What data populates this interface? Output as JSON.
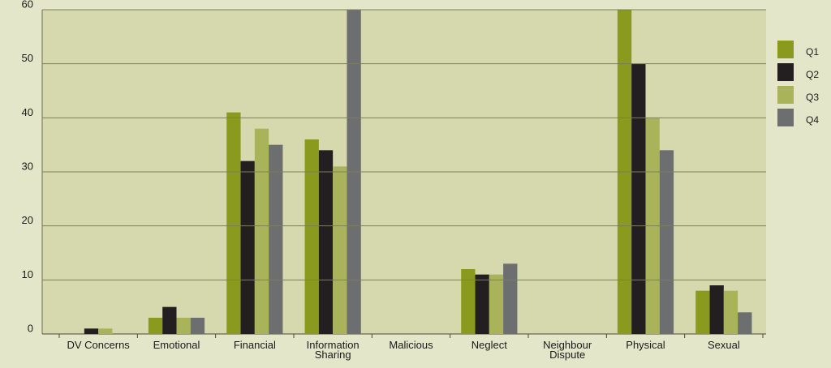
{
  "chart_data": {
    "type": "bar",
    "categories": [
      "DV Concerns",
      "Emotional",
      "Financial",
      "Information Sharing",
      "Malicious",
      "Neglect",
      "Neighbour Dispute",
      "Physical",
      "Sexual"
    ],
    "series": [
      {
        "name": "Q1",
        "color": "#8a9a1e",
        "values": [
          0,
          3,
          41,
          36,
          0,
          12,
          0,
          60,
          8
        ]
      },
      {
        "name": "Q2",
        "color": "#231f20",
        "values": [
          1,
          5,
          32,
          34,
          0,
          11,
          0,
          50,
          9
        ]
      },
      {
        "name": "Q3",
        "color": "#a9b45a",
        "values": [
          1,
          3,
          38,
          31,
          0,
          11,
          0,
          40,
          8
        ]
      },
      {
        "name": "Q4",
        "color": "#6d6e70",
        "values": [
          0,
          3,
          35,
          60,
          0,
          13,
          0,
          34,
          4
        ]
      }
    ],
    "ylim": [
      0,
      60
    ],
    "yticks": [
      0,
      10,
      20,
      30,
      40,
      50,
      60
    ],
    "grid": true,
    "legend": "right"
  }
}
